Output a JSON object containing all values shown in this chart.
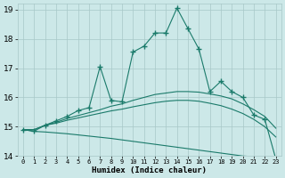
{
  "xlabel": "Humidex (Indice chaleur)",
  "bg_color": "#cce8e8",
  "grid_color": "#a8c8c8",
  "line_color": "#1a7a6a",
  "xlim": [
    -0.5,
    23.5
  ],
  "ylim": [
    14,
    19.2
  ],
  "xticks": [
    0,
    1,
    2,
    3,
    4,
    5,
    6,
    7,
    8,
    9,
    10,
    11,
    12,
    13,
    14,
    15,
    16,
    17,
    18,
    19,
    20,
    21,
    22,
    23
  ],
  "yticks": [
    14,
    15,
    16,
    17,
    18,
    19
  ],
  "main_x": [
    0,
    1,
    2,
    3,
    4,
    5,
    6,
    7,
    8,
    9,
    10,
    11,
    12,
    13,
    14,
    15,
    16,
    17,
    18,
    19,
    20,
    21,
    22,
    23
  ],
  "main_y": [
    14.9,
    14.85,
    15.05,
    15.2,
    15.35,
    15.55,
    15.65,
    17.05,
    15.9,
    15.85,
    17.55,
    17.75,
    18.2,
    18.2,
    19.05,
    18.35,
    17.65,
    16.2,
    16.55,
    16.2,
    16.0,
    15.4,
    15.25,
    13.9
  ],
  "line2_x": [
    0,
    1,
    2,
    3,
    4,
    5,
    6,
    7,
    8,
    9,
    10,
    11,
    12,
    13,
    14,
    15,
    16,
    17,
    18,
    19,
    20,
    21,
    22,
    23
  ],
  "line2_y": [
    14.9,
    14.9,
    15.05,
    15.15,
    15.28,
    15.38,
    15.48,
    15.58,
    15.7,
    15.78,
    15.9,
    16.0,
    16.1,
    16.15,
    16.2,
    16.2,
    16.18,
    16.12,
    16.05,
    15.95,
    15.78,
    15.58,
    15.35,
    14.95
  ],
  "line3_x": [
    0,
    1,
    2,
    3,
    4,
    5,
    6,
    7,
    8,
    9,
    10,
    11,
    12,
    13,
    14,
    15,
    16,
    17,
    18,
    19,
    20,
    21,
    22,
    23
  ],
  "line3_y": [
    14.9,
    14.9,
    15.05,
    15.12,
    15.22,
    15.3,
    15.38,
    15.46,
    15.54,
    15.6,
    15.68,
    15.75,
    15.82,
    15.87,
    15.9,
    15.9,
    15.87,
    15.8,
    15.72,
    15.6,
    15.45,
    15.25,
    15.0,
    14.65
  ],
  "line4_x": [
    0,
    1,
    2,
    3,
    4,
    5,
    6,
    7,
    8,
    9,
    10,
    11,
    12,
    13,
    14,
    15,
    16,
    17,
    18,
    19,
    20,
    21,
    22,
    23
  ],
  "line4_y": [
    14.9,
    14.84,
    14.82,
    14.79,
    14.76,
    14.72,
    14.68,
    14.64,
    14.6,
    14.55,
    14.5,
    14.45,
    14.4,
    14.35,
    14.3,
    14.25,
    14.2,
    14.15,
    14.1,
    14.05,
    14.0,
    13.98,
    13.96,
    13.9
  ]
}
